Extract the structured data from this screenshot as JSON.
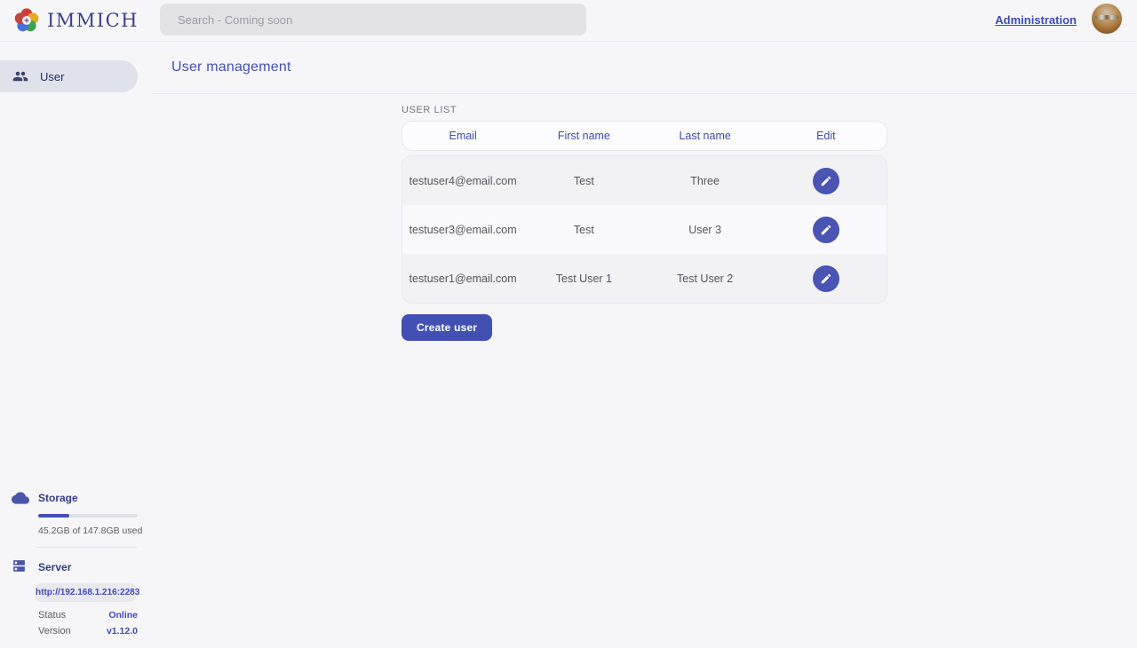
{
  "header": {
    "logo_text": "IMMICH",
    "search_placeholder": "Search - Coming soon",
    "admin_link": "Administration"
  },
  "sidebar": {
    "items": [
      {
        "label": "User"
      }
    ],
    "storage": {
      "title": "Storage",
      "usage_text": "45.2GB of 147.8GB used",
      "percent_used": 31
    },
    "server": {
      "title": "Server",
      "url": "http://192.168.1.216:2283",
      "status_label": "Status",
      "status_value": "Online",
      "version_label": "Version",
      "version_value": "v1.12.0"
    }
  },
  "main": {
    "page_title": "User management",
    "section_label": "USER LIST",
    "table": {
      "columns": [
        "Email",
        "First name",
        "Last name",
        "Edit"
      ],
      "rows": [
        {
          "email": "testuser4@email.com",
          "first_name": "Test",
          "last_name": "Three"
        },
        {
          "email": "testuser3@email.com",
          "first_name": "Test",
          "last_name": "User 3"
        },
        {
          "email": "testuser1@email.com",
          "first_name": "Test User 1",
          "last_name": "Test User 2"
        }
      ]
    },
    "create_button": "Create user"
  },
  "colors": {
    "accent": "#4250b4",
    "accent_dark": "#333c85",
    "page_background": "#f6f6f9"
  }
}
